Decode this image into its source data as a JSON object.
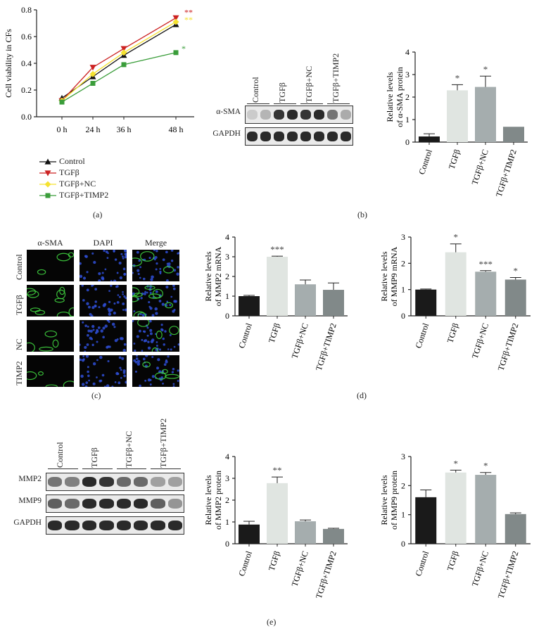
{
  "panels": {
    "a": "(a)",
    "b": "(b)",
    "c": "(c)",
    "d": "(d)",
    "e": "(e)"
  },
  "colors": {
    "control": "#1a1a1a",
    "tgfb": "#e0e5e1",
    "tgfb_nc": "#a5adae",
    "tgfb_timp2": "#818989",
    "line_control": "#111111",
    "line_tgfb": "#cc2222",
    "line_tgfb_nc": "#f5e230",
    "line_tgfb_timp2": "#3a9d3a"
  },
  "chart_data": [
    {
      "id": "a",
      "type": "line",
      "ylabel": "Cell viability in CFs",
      "x": [
        "0 h",
        "24 h",
        "36 h",
        "48 h"
      ],
      "ylim": [
        0.0,
        0.8
      ],
      "yticks": [
        "0.0",
        "0.2",
        "0.4",
        "0.6",
        "0.8"
      ],
      "series": [
        {
          "name": "Control",
          "values": [
            0.14,
            0.3,
            0.46,
            0.69
          ],
          "marker": "triangle-up",
          "color": "#111111"
        },
        {
          "name": "TGFβ",
          "values": [
            0.12,
            0.37,
            0.51,
            0.74
          ],
          "marker": "triangle-down",
          "color": "#cc2222"
        },
        {
          "name": "TGFβ+NC",
          "values": [
            0.12,
            0.32,
            0.48,
            0.71
          ],
          "marker": "diamond",
          "color": "#f5e230"
        },
        {
          "name": "TGFβ+TIMP2",
          "values": [
            0.11,
            0.25,
            0.39,
            0.48
          ],
          "marker": "square",
          "color": "#3a9d3a"
        }
      ],
      "annotations": [
        {
          "text": "**",
          "series": "TGFβ"
        },
        {
          "text": "**",
          "series": "TGFβ+NC"
        },
        {
          "text": "*",
          "series": "TGFβ+TIMP2"
        }
      ]
    },
    {
      "id": "b",
      "type": "bar",
      "ylabel": "Relative levels of α-SMA protein",
      "categories": [
        "Control",
        "TGFβ",
        "TGFβ+NC",
        "TGFβ+TIMP2"
      ],
      "values": [
        0.25,
        2.3,
        2.45,
        0.68
      ],
      "errors": [
        0.12,
        0.25,
        0.48,
        0
      ],
      "sig": [
        "",
        "*",
        "*",
        ""
      ],
      "ylim": [
        0,
        4
      ],
      "yticks": [
        "0",
        "1",
        "2",
        "3",
        "4"
      ]
    },
    {
      "id": "d1",
      "type": "bar",
      "ylabel": "Relative levels of MMP2 mRNA",
      "categories": [
        "Control",
        "TGFβ",
        "TGFβ+NC",
        "TGFβ+TIMP2"
      ],
      "values": [
        1.0,
        3.0,
        1.6,
        1.32
      ],
      "errors": [
        0.04,
        0.03,
        0.22,
        0.35
      ],
      "sig": [
        "",
        "***",
        "",
        ""
      ],
      "ylim": [
        0,
        4
      ],
      "yticks": [
        "0",
        "1",
        "2",
        "3",
        "4"
      ]
    },
    {
      "id": "d2",
      "type": "bar",
      "ylabel": "Relative levels of MMP9 mRNA",
      "categories": [
        "Control",
        "TGFβ",
        "TGFβ+NC",
        "TGFβ+TIMP2"
      ],
      "values": [
        1.0,
        2.42,
        1.68,
        1.38
      ],
      "errors": [
        0.02,
        0.32,
        0.04,
        0.08
      ],
      "sig": [
        "",
        "*",
        "***",
        "*"
      ],
      "ylim": [
        0,
        3
      ],
      "yticks": [
        "0",
        "1",
        "2",
        "3"
      ]
    },
    {
      "id": "e1",
      "type": "bar",
      "ylabel": "Relative levels of MMP2 protein",
      "categories": [
        "Control",
        "TGFβ",
        "TGFβ+NC",
        "TGFβ+TIMP2"
      ],
      "values": [
        0.88,
        2.78,
        1.03,
        0.68
      ],
      "errors": [
        0.15,
        0.28,
        0.06,
        0.03
      ],
      "sig": [
        "",
        "**",
        "",
        ""
      ],
      "ylim": [
        0,
        4
      ],
      "yticks": [
        "0",
        "1",
        "2",
        "3",
        "4"
      ]
    },
    {
      "id": "e2",
      "type": "bar",
      "ylabel": "Relative levels of MMP9 protein",
      "categories": [
        "Control",
        "TGFβ",
        "TGFβ+NC",
        "TGFβ+TIMP2"
      ],
      "values": [
        1.6,
        2.45,
        2.37,
        1.02
      ],
      "errors": [
        0.25,
        0.08,
        0.08,
        0.04
      ],
      "sig": [
        "",
        "*",
        "*",
        ""
      ],
      "ylim": [
        0,
        3
      ],
      "yticks": [
        "0",
        "1",
        "2",
        "3"
      ]
    }
  ],
  "blot_b": {
    "lanes": [
      "Control",
      "TGFβ",
      "TGFβ+NC",
      "TGFβ+TIMP2"
    ],
    "rows": [
      {
        "label": "α-SMA",
        "intensity": [
          0.15,
          0.25,
          0.85,
          0.9,
          0.85,
          0.9,
          0.55,
          0.3
        ]
      },
      {
        "label": "GAPDH",
        "intensity": [
          0.9,
          0.9,
          0.9,
          0.9,
          0.9,
          0.9,
          0.9,
          0.9
        ]
      }
    ]
  },
  "blot_e": {
    "lanes": [
      "Control",
      "TGFβ",
      "TGFβ+NC",
      "TGFβ+TIMP2"
    ],
    "rows": [
      {
        "label": "MMP2",
        "intensity": [
          0.55,
          0.5,
          0.9,
          0.85,
          0.6,
          0.6,
          0.35,
          0.35
        ]
      },
      {
        "label": "MMP9",
        "intensity": [
          0.65,
          0.6,
          0.9,
          0.9,
          0.9,
          0.9,
          0.65,
          0.4
        ]
      },
      {
        "label": "GAPDH",
        "intensity": [
          0.9,
          0.9,
          0.9,
          0.9,
          0.9,
          0.9,
          0.9,
          0.9
        ]
      }
    ]
  },
  "micrographs": {
    "columns": [
      "α-SMA",
      "DAPI",
      "Merge"
    ],
    "rows": [
      "Control",
      "TGFβ",
      "NC",
      "TIMP2"
    ]
  }
}
